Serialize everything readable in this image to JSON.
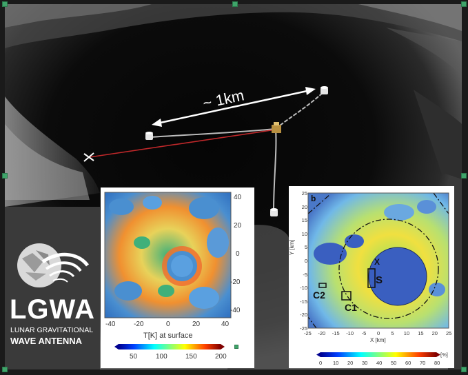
{
  "slide": {
    "scale_label": "~ 1km",
    "logo": {
      "main": "LGWA",
      "line1": "LUNAR GRAVITATIONAL",
      "line2": "WAVE ANTENNA"
    }
  },
  "map_left": {
    "colorbar_label": "T[K] at surface",
    "colorbar_ticks": [
      "50",
      "100",
      "150",
      "200"
    ],
    "colorbar_range": [
      30,
      200
    ],
    "x_ticks": [
      "-40",
      "-20",
      "0",
      "20",
      "40"
    ],
    "y_ticks": [
      "40",
      "20",
      "0",
      "-20",
      "-40"
    ],
    "axis_range": [
      -45,
      45
    ]
  },
  "map_right": {
    "panel_letter": "b",
    "xlabel": "X [km]",
    "ylabel": "Y [km]",
    "x_ticks": [
      "-25",
      "-20",
      "-15",
      "-10",
      "-5",
      "0",
      "5",
      "10",
      "15",
      "20",
      "25"
    ],
    "y_ticks": [
      "25",
      "20",
      "15",
      "10",
      "5",
      "0",
      "-5",
      "-10",
      "-15",
      "-20",
      "-25"
    ],
    "axis_range": [
      -25,
      25
    ],
    "colorbar_ticks": [
      "0",
      "10",
      "20",
      "30",
      "40",
      "50",
      "60",
      "70",
      "80"
    ],
    "colorbar_unit": "[%]",
    "labels": {
      "S": "S",
      "C1": "C1",
      "C2": "C2",
      "X": "X"
    }
  },
  "colors": {
    "scale_arrow": "#ffffff",
    "cable_red": "#c0282a",
    "handle": "#3fa46a"
  }
}
